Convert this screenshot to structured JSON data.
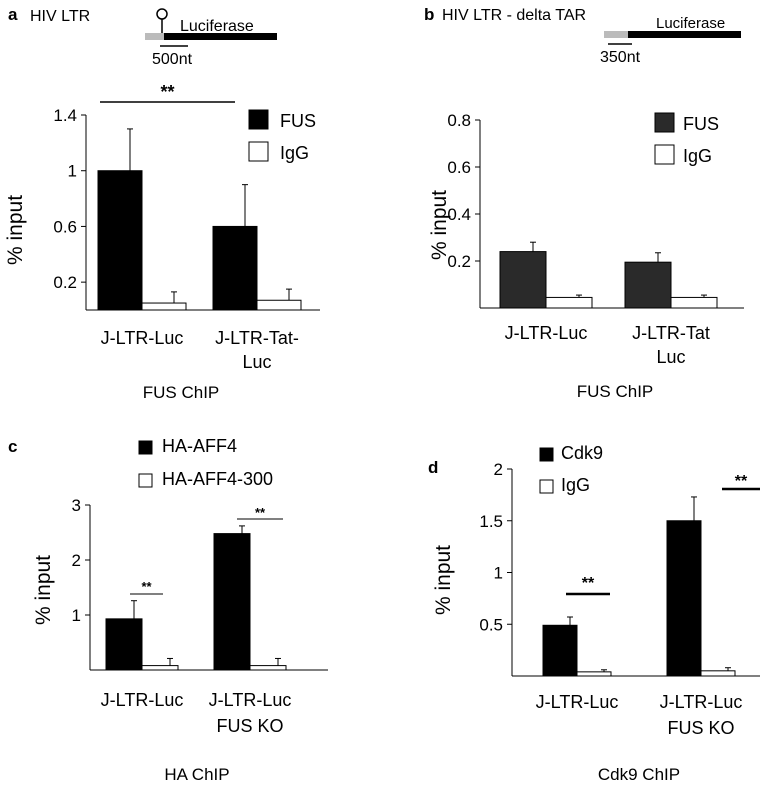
{
  "colors": {
    "solid": "#000000",
    "solid_b": "#2a2a2a",
    "open": "#ffffff",
    "gray_segment": "#bbbbbb"
  },
  "panels": [
    {
      "letter": "a",
      "schematic": {
        "title": "HIV LTR",
        "gene_label": "Luciferase",
        "scale_label": "500nt",
        "has_tar_hairpin": true
      },
      "chip_label": "FUS ChIP"
    },
    {
      "letter": "b",
      "schematic": {
        "title": "HIV LTR - delta TAR",
        "gene_label": "Luciferase",
        "scale_label": "350nt",
        "has_tar_hairpin": false
      },
      "chip_label": "FUS ChIP"
    },
    {
      "letter": "c",
      "chip_label": "HA ChIP"
    },
    {
      "letter": "d",
      "chip_label": "Cdk9 ChIP"
    }
  ],
  "chart_data": [
    {
      "type": "bar",
      "panel": "a",
      "title": "",
      "xlabel": "",
      "ylabel": "% input",
      "categories": [
        [
          "J-LTR-Luc"
        ],
        [
          "J-LTR-Tat-",
          "Luc"
        ]
      ],
      "series": [
        {
          "name": "FUS",
          "fill": "solid",
          "values": [
            1.0,
            0.6
          ],
          "errors": [
            0.3,
            0.3
          ]
        },
        {
          "name": "IgG",
          "fill": "open",
          "values": [
            0.05,
            0.07
          ],
          "errors": [
            0.08,
            0.08
          ]
        }
      ],
      "ylim": [
        0,
        1.4
      ],
      "yticks": [
        0.2,
        0.6,
        1,
        1.4
      ],
      "significance": [
        {
          "label": "**",
          "type": "bracket_between_groups"
        }
      ],
      "legend_position": "top-right"
    },
    {
      "type": "bar",
      "panel": "b",
      "title": "",
      "xlabel": "",
      "ylabel": "% input",
      "categories": [
        [
          "J-LTR-Luc"
        ],
        [
          "J-LTR-Tat",
          "Luc"
        ]
      ],
      "series": [
        {
          "name": "FUS",
          "fill": "solid_b",
          "values": [
            0.24,
            0.195
          ],
          "errors": [
            0.04,
            0.04
          ]
        },
        {
          "name": "IgG",
          "fill": "open",
          "values": [
            0.045,
            0.045
          ],
          "errors": [
            0.01,
            0.01
          ]
        }
      ],
      "ylim": [
        0,
        0.8
      ],
      "yticks": [
        0.2,
        0.4,
        0.6,
        0.8
      ],
      "significance": [],
      "legend_position": "top-right"
    },
    {
      "type": "bar",
      "panel": "c",
      "title": "",
      "xlabel": "",
      "ylabel": "% input",
      "categories": [
        [
          "J-LTR-Luc"
        ],
        [
          "J-LTR-Luc",
          "FUS KO"
        ]
      ],
      "series": [
        {
          "name": "HA-AFF4",
          "fill": "solid",
          "values": [
            0.93,
            2.48
          ],
          "errors": [
            0.33,
            0.14
          ]
        },
        {
          "name": "HA-AFF4-300",
          "fill": "open",
          "values": [
            0.08,
            0.08
          ],
          "errors": [
            0.13,
            0.13
          ]
        }
      ],
      "ylim": [
        0,
        3
      ],
      "yticks": [
        1,
        2,
        3
      ],
      "significance": [
        {
          "label": "**",
          "type": "line_within_group",
          "group": 0
        },
        {
          "label": "**",
          "type": "line_within_group",
          "group": 1
        }
      ],
      "legend_position": "top"
    },
    {
      "type": "bar",
      "panel": "d",
      "title": "",
      "xlabel": "",
      "ylabel": "% input",
      "categories": [
        [
          "J-LTR-Luc"
        ],
        [
          "J-LTR-Luc",
          "FUS KO"
        ]
      ],
      "series": [
        {
          "name": "Cdk9",
          "fill": "solid",
          "values": [
            0.49,
            1.5
          ],
          "errors": [
            0.08,
            0.23
          ]
        },
        {
          "name": "IgG",
          "fill": "open",
          "values": [
            0.04,
            0.05
          ],
          "errors": [
            0.02,
            0.03
          ]
        }
      ],
      "ylim": [
        0,
        2
      ],
      "yticks": [
        0.5,
        1,
        1.5,
        2
      ],
      "significance": [
        {
          "label": "**",
          "type": "line_within_group",
          "group": 0
        },
        {
          "label": "**",
          "type": "line_within_group",
          "group": 1
        }
      ],
      "legend_position": "top-left"
    }
  ]
}
